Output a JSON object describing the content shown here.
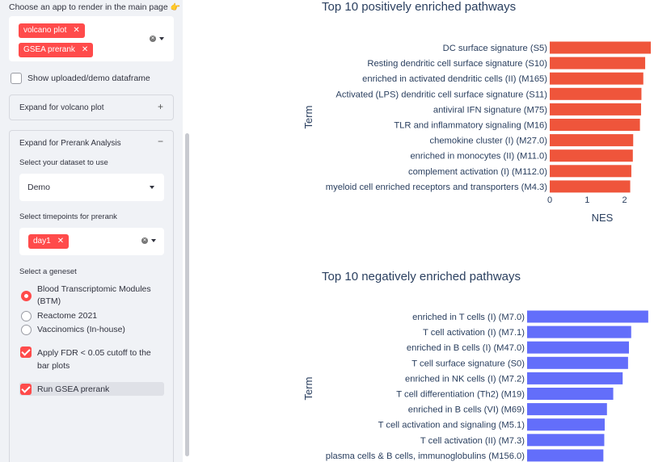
{
  "sidebar": {
    "app_label": "Choose an app to render in the main page",
    "app_label_icon": "👉",
    "app_tags": [
      "volcano plot",
      "GSEA prerank"
    ],
    "show_df_label": "Show uploaded/demo dataframe",
    "expander_volcano": "Expand for volcano plot",
    "expander_prerank": "Expand for Prerank Analysis",
    "dataset_label": "Select your dataset to use",
    "dataset_value": "Demo",
    "timepoints_label": "Select timepoints for prerank",
    "timepoint_tags": [
      "day1"
    ],
    "geneset_label": "Select a geneset",
    "geneset_options": [
      "Blood Transcriptomic Modules (BTM)",
      "Reactome 2021",
      "Vaccinomics (In-house)"
    ],
    "geneset_selected": 0,
    "fdr_label": "Apply FDR < 0.05 cutoff to the bar plots",
    "run_label": "Run GSEA prerank"
  },
  "colors": {
    "accent": "#ff4b4b",
    "positive_bar": "#ef553b",
    "negative_bar": "#636efa"
  },
  "chart_data": [
    {
      "type": "bar",
      "orientation": "horizontal",
      "title": "Top 10 positively enriched pathways",
      "xlabel": "NES",
      "ylabel": "Term",
      "xticks": [
        0,
        1,
        2
      ],
      "xlim": [
        0,
        2.75
      ],
      "categories": [
        "DC surface signature (S5)",
        "Resting dendritic cell surface signature (S10)",
        "enriched in activated dendritic cells (II) (M165)",
        "Activated (LPS) dendritic cell surface signature (S11)",
        "antiviral IFN signature (M75)",
        "TLR and inflammatory signaling (M16)",
        "chemokine cluster (I) (M27.0)",
        "enriched in monocytes (II) (M11.0)",
        "complement activation (I) (M112.0)",
        "myeloid cell enriched receptors and transporters (M4.3)"
      ],
      "values": [
        2.7,
        2.55,
        2.5,
        2.45,
        2.44,
        2.41,
        2.23,
        2.22,
        2.18,
        2.15
      ]
    },
    {
      "type": "bar",
      "orientation": "horizontal",
      "title": "Top 10 negatively enriched pathways",
      "xlabel": "",
      "ylabel": "Term",
      "xlim": [
        0,
        2.75
      ],
      "categories": [
        "enriched in T cells (I) (M7.0)",
        "T cell activation (I) (M7.1)",
        "enriched in B cells (I) (M47.0)",
        "T cell surface signature (S0)",
        "enriched in NK cells (I) (M7.2)",
        "T cell differentiation (Th2) (M19)",
        "enriched in B cells (VI) (M69)",
        "T cell activation and signaling (M5.1)",
        "T cell activation (II) (M7.3)",
        "plasma cells & B cells, immunoglobulins (M156.0)"
      ],
      "values": [
        2.7,
        2.32,
        2.27,
        2.25,
        2.13,
        1.92,
        1.78,
        1.73,
        1.72,
        1.7
      ]
    }
  ]
}
